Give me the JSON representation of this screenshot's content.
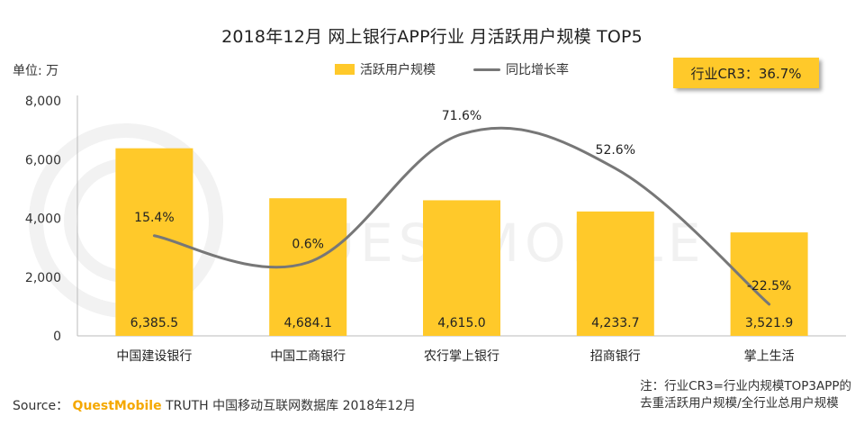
{
  "title": "2018年12月 网上银行APP行业 月活跃用户规模 TOP5",
  "unit_label": "单位: 万",
  "cr3_badge": "行业CR3：36.7%",
  "watermark": "QUESTMOBILE",
  "source": {
    "prefix": "Source：",
    "brand": "QuestMobile",
    "rest": "TRUTH 中国移动互联网数据库 2018年12月"
  },
  "note": {
    "line1": "注：行业CR3=行业内规模TOP3APP的",
    "line2": "去重活跃用户规模/全行业总用户规模"
  },
  "colors": {
    "bar": "#FFC92A",
    "line": "#777777",
    "axis": "#BBBBBB"
  },
  "chart_data": {
    "type": "bar",
    "title": "2018年12月 网上银行APP行业 月活跃用户规模 TOP5",
    "categories": [
      "中国建设银行",
      "中国工商银行",
      "农行掌上银行",
      "招商银行",
      "掌上生活"
    ],
    "series": [
      {
        "name": "活跃用户规模",
        "type": "bar",
        "values": [
          6385.5,
          4684.1,
          4615.0,
          4233.7,
          3521.9
        ],
        "labels": [
          "6,385.5",
          "4,684.1",
          "4,615.0",
          "4,233.7",
          "3,521.9"
        ]
      },
      {
        "name": "同比增长率",
        "type": "line",
        "values": [
          15.4,
          0.6,
          71.6,
          52.6,
          -22.5
        ],
        "labels": [
          "15.4%",
          "0.6%",
          "71.6%",
          "52.6%",
          "-22.5%"
        ]
      }
    ],
    "yticks": [
      "0",
      "2,000",
      "4,000",
      "6,000",
      "8,000"
    ],
    "ylim": [
      0,
      8000
    ],
    "y2lim": [
      -40,
      90
    ],
    "legend_position": "top-center",
    "grid": false
  }
}
